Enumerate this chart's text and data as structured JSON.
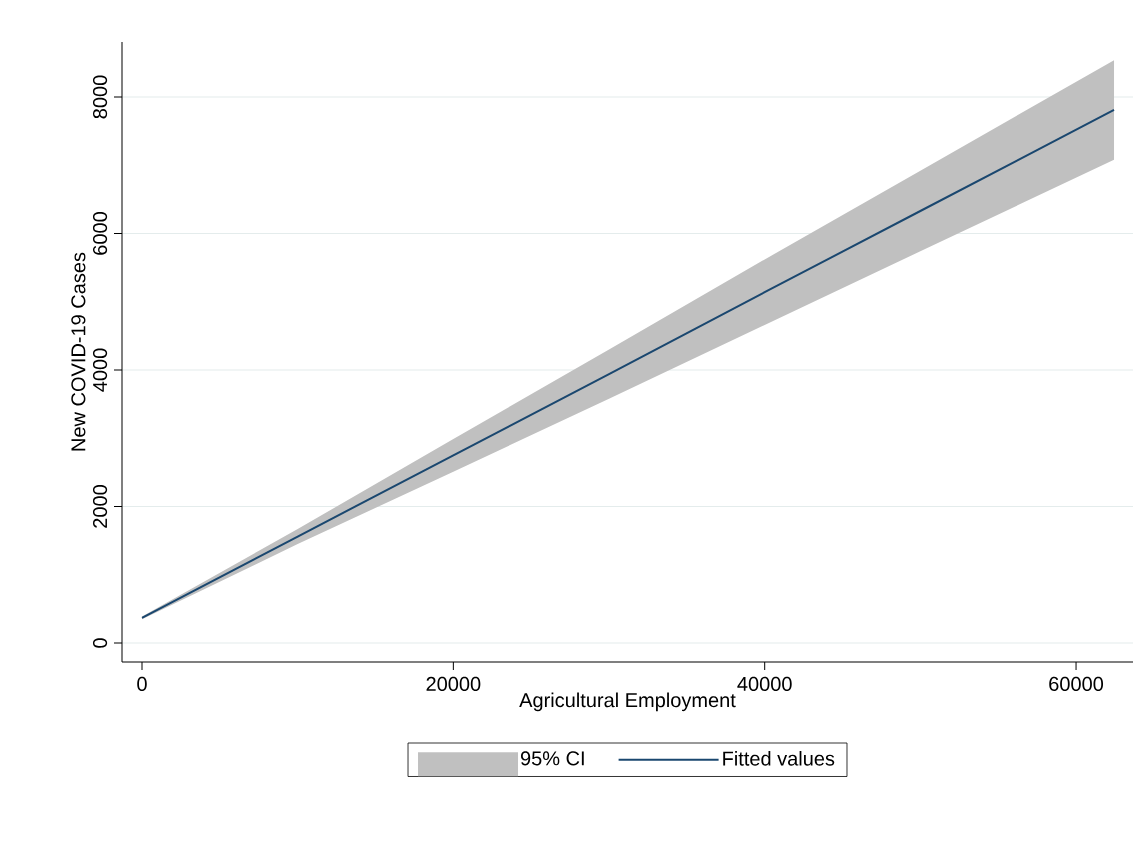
{
  "chart_data": {
    "type": "line",
    "xlabel": "Agricultural Employment",
    "ylabel": "New COVID-19 Cases",
    "annotations": [
      "95% CI"
    ],
    "series": [
      {
        "name": "Fitted values",
        "color": "#1a476f",
        "x": [
          0,
          10000,
          20000,
          30000,
          40000,
          50000,
          62440
        ],
        "values": [
          370,
          1560,
          2750,
          3940,
          5140,
          6330,
          7810
        ],
        "lower": [
          350,
          1450,
          2510,
          3580,
          4660,
          5740,
          7080
        ],
        "upper": [
          390,
          1670,
          2990,
          4300,
          5620,
          6920,
          8540
        ]
      }
    ],
    "xlim": [
      -1285,
      63660
    ],
    "ylim": [
      -278,
      8806
    ],
    "xticks": [
      0,
      20000,
      40000,
      60000
    ],
    "yticks": [
      0,
      2000,
      4000,
      6000,
      8000
    ],
    "grid": "y",
    "legend": "bottom",
    "marker": "none",
    "line_style": "solid"
  }
}
